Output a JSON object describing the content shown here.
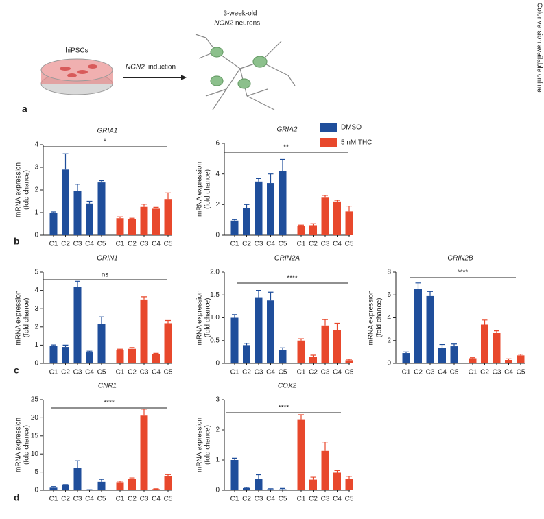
{
  "side_note": "Color version available online",
  "panel_labels": [
    "a",
    "b",
    "c",
    "d"
  ],
  "diagram": {
    "source": "hiPSCs",
    "induction_gene": "NGN2",
    "induction_text": "induction",
    "target_age": "3-week-old",
    "target_gene": "NGN2",
    "target_text": "neurons"
  },
  "legend": [
    {
      "name": "DMSO",
      "color": "#1f4e9b"
    },
    {
      "name": "5 nM THC",
      "color": "#e8482c"
    }
  ],
  "chart_data": [
    {
      "type": "bar",
      "title": "GRIA1",
      "ylabel": [
        "mRNA expression",
        "(fold chance)"
      ],
      "categories": [
        "C1",
        "C2",
        "C3",
        "C4",
        "C5"
      ],
      "series": [
        {
          "values": [
            0.97,
            2.9,
            1.97,
            1.4,
            2.33
          ],
          "errors": [
            0.06,
            0.7,
            0.28,
            0.1,
            0.08
          ]
        },
        {
          "values": [
            0.75,
            0.7,
            1.25,
            1.17,
            1.6
          ],
          "errors": [
            0.06,
            0.05,
            0.12,
            0.06,
            0.27
          ]
        }
      ],
      "significance": "*",
      "ylim": [
        0,
        4
      ],
      "yticks": [
        0,
        1,
        2,
        3,
        4
      ]
    },
    {
      "type": "bar",
      "title": "GRIA2",
      "ylabel": [
        "mRNA expression",
        "(fold chance)"
      ],
      "categories": [
        "C1",
        "C2",
        "C3",
        "C4",
        "C5"
      ],
      "series": [
        {
          "values": [
            0.95,
            1.75,
            3.5,
            3.4,
            4.2
          ],
          "errors": [
            0.07,
            0.25,
            0.2,
            0.6,
            0.75
          ]
        },
        {
          "values": [
            0.6,
            0.65,
            2.45,
            2.2,
            1.55
          ],
          "errors": [
            0.06,
            0.1,
            0.15,
            0.08,
            0.35
          ]
        }
      ],
      "significance": "**",
      "ylim": [
        0,
        6
      ],
      "yticks": [
        0,
        2,
        4,
        6
      ]
    },
    {
      "type": "bar",
      "title": "GRIN1",
      "ylabel": [
        "mRNA expression",
        "(fold chance)"
      ],
      "categories": [
        "C1",
        "C2",
        "C3",
        "C4",
        "C5"
      ],
      "series": [
        {
          "values": [
            0.95,
            0.9,
            4.2,
            0.6,
            2.15
          ],
          "errors": [
            0.06,
            0.1,
            0.3,
            0.07,
            0.4
          ]
        },
        {
          "values": [
            0.72,
            0.8,
            3.5,
            0.5,
            2.2
          ],
          "errors": [
            0.06,
            0.07,
            0.15,
            0.05,
            0.15
          ]
        }
      ],
      "significance": "ns",
      "ylim": [
        0,
        5
      ],
      "yticks": [
        0,
        1,
        2,
        3,
        4,
        5
      ]
    },
    {
      "type": "bar",
      "title": "GRIN2A",
      "ylabel": [
        "mRNA expression",
        "(fold chance)"
      ],
      "categories": [
        "C1",
        "C2",
        "C3",
        "C4",
        "C5"
      ],
      "series": [
        {
          "values": [
            1.0,
            0.4,
            1.45,
            1.38,
            0.3
          ],
          "errors": [
            0.07,
            0.04,
            0.15,
            0.18,
            0.04
          ]
        },
        {
          "values": [
            0.5,
            0.15,
            0.83,
            0.73,
            0.07
          ],
          "errors": [
            0.04,
            0.03,
            0.13,
            0.15,
            0.02
          ]
        }
      ],
      "significance": "****",
      "ylim": [
        0,
        2
      ],
      "yticks": [
        0,
        0.5,
        {
          "value": 1,
          "label": "1.0"
        },
        1.5,
        {
          "value": 2,
          "label": "2.0"
        }
      ]
    },
    {
      "type": "bar",
      "title": "GRIN2B",
      "ylabel": [
        "mRNA expression",
        "(fold chance)"
      ],
      "categories": [
        "C1",
        "C2",
        "C3",
        "C4",
        "C5"
      ],
      "series": [
        {
          "values": [
            0.9,
            6.5,
            5.9,
            1.35,
            1.5
          ],
          "errors": [
            0.1,
            0.55,
            0.4,
            0.3,
            0.2
          ]
        },
        {
          "values": [
            0.45,
            3.4,
            2.7,
            0.3,
            0.7
          ],
          "errors": [
            0.05,
            0.4,
            0.15,
            0.1,
            0.1
          ]
        }
      ],
      "significance": "****",
      "ylim": [
        0,
        8
      ],
      "yticks": [
        0,
        2,
        4,
        6,
        8
      ]
    },
    {
      "type": "bar",
      "title": "CNR1",
      "ylabel": [
        "mRNA expression",
        "(fold chance)"
      ],
      "categories": [
        "C1",
        "C2",
        "C3",
        "C4",
        "C5"
      ],
      "series": [
        {
          "values": [
            0.7,
            1.4,
            6.2,
            0.1,
            2.3
          ],
          "errors": [
            0.3,
            0.15,
            1.9,
            0.05,
            0.7
          ]
        },
        {
          "values": [
            2.2,
            3.1,
            20.6,
            0.3,
            3.8
          ],
          "errors": [
            0.3,
            0.3,
            1.8,
            0.1,
            0.5
          ]
        }
      ],
      "significance": "****",
      "ylim": [
        0,
        25
      ],
      "yticks": [
        0,
        5,
        10,
        15,
        20,
        25
      ]
    },
    {
      "type": "bar",
      "title": "COX2",
      "ylabel": [
        "mRNA expression",
        "(fold chance)"
      ],
      "categories": [
        "C1",
        "C2",
        "C3",
        "C4",
        "C5"
      ],
      "series": [
        {
          "values": [
            1.0,
            0.07,
            0.38,
            0.03,
            0.03
          ],
          "errors": [
            0.06,
            0.02,
            0.13,
            0.02,
            0.03
          ]
        },
        {
          "values": [
            2.35,
            0.35,
            1.3,
            0.58,
            0.38
          ],
          "errors": [
            0.15,
            0.08,
            0.3,
            0.07,
            0.08
          ]
        }
      ],
      "significance": "****",
      "ylim": [
        0,
        3
      ],
      "yticks": [
        0,
        1,
        2,
        3
      ]
    }
  ]
}
